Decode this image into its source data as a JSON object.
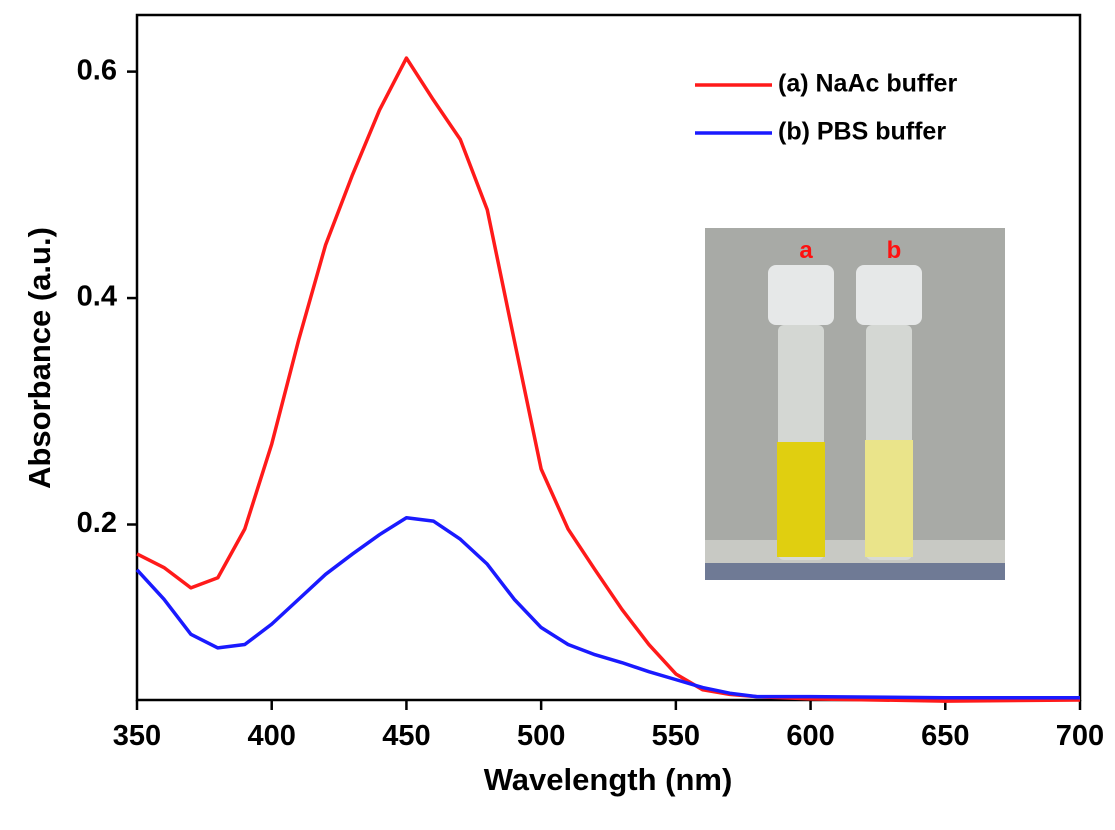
{
  "chart_data": {
    "type": "line",
    "xlabel": "Wavelength (nm)",
    "ylabel": "Absorbance (a.u.)",
    "x": [
      350,
      360,
      370,
      380,
      390,
      400,
      410,
      420,
      430,
      440,
      450,
      460,
      470,
      480,
      490,
      500,
      510,
      520,
      530,
      540,
      550,
      560,
      570,
      580,
      600,
      650,
      700
    ],
    "series": [
      {
        "name": "(a) NaAc buffer",
        "color": "#ff1a1a",
        "values": [
          0.174,
          0.162,
          0.144,
          0.153,
          0.196,
          0.271,
          0.363,
          0.447,
          0.509,
          0.566,
          0.612,
          0.575,
          0.54,
          0.478,
          0.363,
          0.249,
          0.196,
          0.16,
          0.125,
          0.094,
          0.068,
          0.054,
          0.05,
          0.048,
          0.046,
          0.044,
          0.045
        ]
      },
      {
        "name": "(b) PBS  buffer",
        "color": "#1a1aff",
        "values": [
          0.16,
          0.134,
          0.103,
          0.091,
          0.094,
          0.112,
          0.134,
          0.156,
          0.174,
          0.191,
          0.206,
          0.203,
          0.187,
          0.165,
          0.134,
          0.109,
          0.094,
          0.085,
          0.078,
          0.07,
          0.063,
          0.056,
          0.051,
          0.048,
          0.048,
          0.047,
          0.047
        ]
      }
    ],
    "xlim": [
      350,
      700
    ],
    "xticks": [
      350,
      400,
      450,
      500,
      550,
      600,
      650,
      700
    ],
    "ylim": [
      0.045,
      0.65
    ],
    "yticks": [
      0.2,
      0.4,
      0.6
    ],
    "legend": "upper right",
    "annotations": [
      "a",
      "b"
    ]
  }
}
